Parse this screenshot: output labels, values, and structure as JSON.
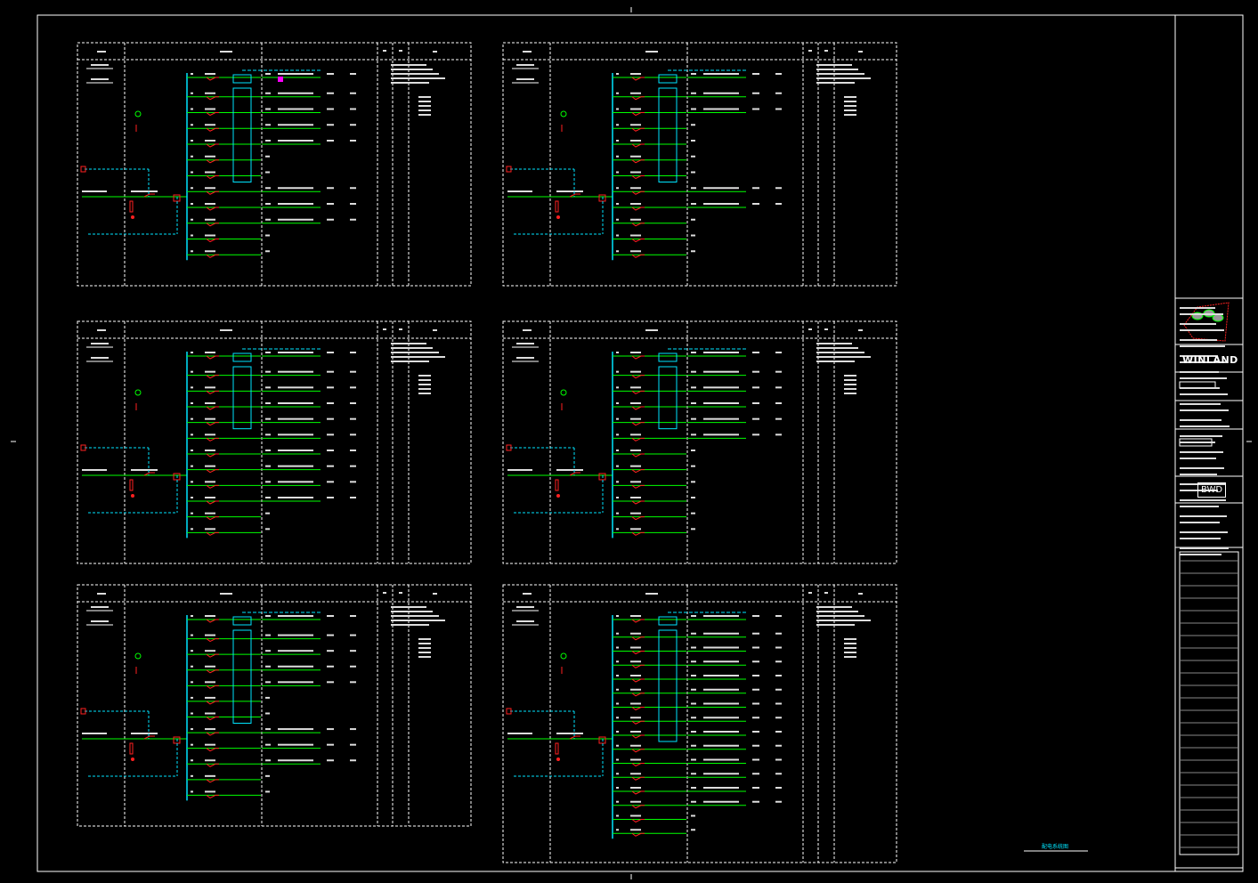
{
  "colors": {
    "background": "#000000",
    "frame": "#ffffff",
    "bus": "#00e5ff",
    "feeder": "#00ff00",
    "breaker": "#ff2020",
    "highlight": "#ff00ff",
    "text": "#ffffff"
  },
  "title_block": {
    "brand": "WINLAND",
    "logo_mark": "BWD",
    "caption": "配电系统图"
  },
  "panels": [
    {
      "id": "p1",
      "rows": 12,
      "feeders": [
        0,
        1,
        2,
        3,
        4,
        7,
        8,
        9
      ],
      "meter_rows": [
        0,
        6
      ]
    },
    {
      "id": "p2",
      "rows": 12,
      "feeders": [
        0,
        1,
        2,
        7,
        8
      ],
      "meter_rows": [
        0,
        6
      ]
    },
    {
      "id": "p3",
      "rows": 12,
      "feeders": [
        0,
        1,
        2,
        3,
        4,
        5,
        6,
        7,
        8,
        9
      ],
      "meter_rows": [
        0,
        4
      ]
    },
    {
      "id": "p4",
      "rows": 12,
      "feeders": [
        0,
        1,
        2,
        3,
        4,
        5
      ],
      "meter_rows": [
        0,
        4
      ]
    },
    {
      "id": "p5",
      "rows": 12,
      "feeders": [
        0,
        1,
        2,
        3,
        4,
        7,
        8,
        9
      ],
      "meter_rows": [
        0,
        6
      ]
    },
    {
      "id": "p6",
      "rows": 16,
      "feeders": [
        0,
        1,
        2,
        3,
        4,
        5,
        6,
        7,
        8,
        9,
        10,
        11,
        12,
        13
      ],
      "meter_rows": [
        0,
        8
      ]
    }
  ]
}
